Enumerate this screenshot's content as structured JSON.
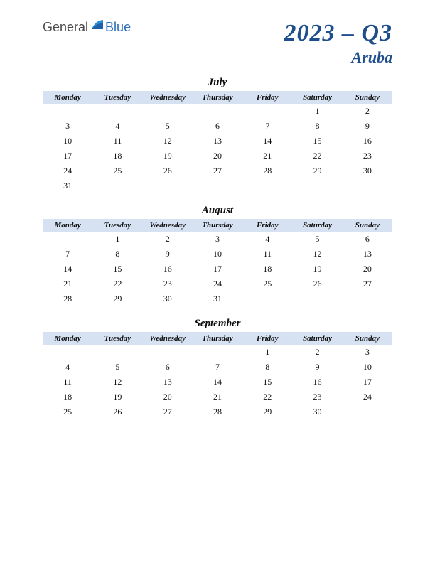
{
  "logo": {
    "part1": "General",
    "part2": "Blue"
  },
  "title": {
    "main": "2023 – Q3",
    "sub": "Aruba"
  },
  "weekdays": [
    "Monday",
    "Tuesday",
    "Wednesday",
    "Thursday",
    "Friday",
    "Saturday",
    "Sunday"
  ],
  "style": {
    "header_bg": "#d6e2f2",
    "text_color": "#0d0d0d",
    "title_color": "#1e4e8c",
    "title_main_fontsize": 34,
    "title_sub_fontsize": 22,
    "month_fontsize": 15,
    "weekday_fontsize": 11,
    "day_fontsize": 12,
    "background": "#ffffff"
  },
  "months": [
    {
      "name": "July",
      "weeks": [
        [
          "",
          "",
          "",
          "",
          "",
          "1",
          "2"
        ],
        [
          "3",
          "4",
          "5",
          "6",
          "7",
          "8",
          "9"
        ],
        [
          "10",
          "11",
          "12",
          "13",
          "14",
          "15",
          "16"
        ],
        [
          "17",
          "18",
          "19",
          "20",
          "21",
          "22",
          "23"
        ],
        [
          "24",
          "25",
          "26",
          "27",
          "28",
          "29",
          "30"
        ],
        [
          "31",
          "",
          "",
          "",
          "",
          "",
          ""
        ]
      ]
    },
    {
      "name": "August",
      "weeks": [
        [
          "",
          "1",
          "2",
          "3",
          "4",
          "5",
          "6"
        ],
        [
          "7",
          "8",
          "9",
          "10",
          "11",
          "12",
          "13"
        ],
        [
          "14",
          "15",
          "16",
          "17",
          "18",
          "19",
          "20"
        ],
        [
          "21",
          "22",
          "23",
          "24",
          "25",
          "26",
          "27"
        ],
        [
          "28",
          "29",
          "30",
          "31",
          "",
          "",
          ""
        ]
      ]
    },
    {
      "name": "September",
      "weeks": [
        [
          "",
          "",
          "",
          "",
          "1",
          "2",
          "3"
        ],
        [
          "4",
          "5",
          "6",
          "7",
          "8",
          "9",
          "10"
        ],
        [
          "11",
          "12",
          "13",
          "14",
          "15",
          "16",
          "17"
        ],
        [
          "18",
          "19",
          "20",
          "21",
          "22",
          "23",
          "24"
        ],
        [
          "25",
          "26",
          "27",
          "28",
          "29",
          "30",
          ""
        ]
      ]
    }
  ]
}
